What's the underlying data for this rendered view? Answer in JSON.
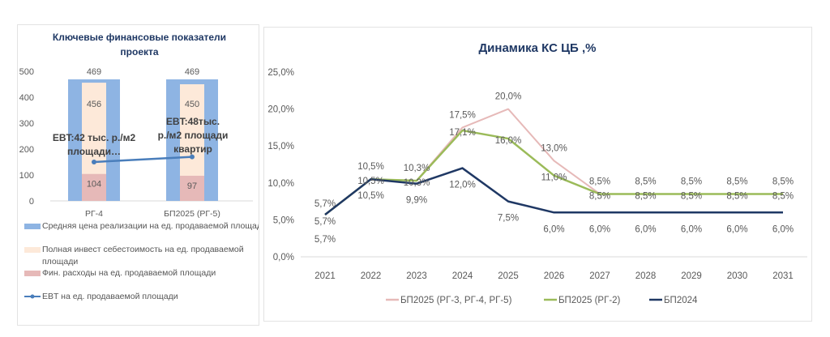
{
  "chart_data": [
    {
      "type": "bar",
      "title": "Ключевые финансовые показатели проекта",
      "categories": [
        "РГ-4",
        "БП2025 (РГ-5)"
      ],
      "ylim": [
        0,
        500
      ],
      "yticks": [
        "0",
        "100",
        "200",
        "300",
        "400",
        "500"
      ],
      "grid": false,
      "legend_position": "bottom",
      "series": [
        {
          "name": "Средняя цена реализации на ед. продаваемой площади",
          "kind": "bar",
          "values": [
            469,
            469
          ],
          "labels": [
            "469",
            "469"
          ],
          "color": "#8eb4e3"
        },
        {
          "name": "Полная инвест себестоимость  на ед. продаваемой площади",
          "kind": "bar",
          "values": [
            456,
            450
          ],
          "labels": [
            "456",
            "450"
          ],
          "color": "#fde9d9"
        },
        {
          "name": "Фин. расходы на ед. продаваемой площади",
          "kind": "bar",
          "values": [
            104,
            97
          ],
          "labels": [
            "104",
            "97"
          ],
          "color": "#e6b9b8"
        },
        {
          "name": "EBT  на ед. продаваемой площади",
          "kind": "line",
          "values": [
            150,
            170
          ],
          "color": "#4a7ebb"
        }
      ],
      "annotations": [
        "EBT:42 тыс. р./м2 площади…",
        "EBT:48тыс. р./м2 площади квартир"
      ]
    },
    {
      "type": "line",
      "title": "Динамика КС ЦБ ,%",
      "categories": [
        "2021",
        "2022",
        "2023",
        "2024",
        "2025",
        "2026",
        "2027",
        "2028",
        "2029",
        "2030",
        "2031"
      ],
      "ylim": [
        0,
        25
      ],
      "yticks": [
        "0,0%",
        "5,0%",
        "10,0%",
        "15,0%",
        "20,0%",
        "25,0%"
      ],
      "grid": false,
      "legend_position": "bottom",
      "series": [
        {
          "name": "БП2025 (РГ-3, РГ-4, РГ-5)",
          "color": "#e6b9b8",
          "values": [
            5.7,
            10.5,
            10.3,
            17.5,
            20.0,
            13.0,
            8.5,
            8.5,
            8.5,
            8.5,
            8.5
          ],
          "labels": [
            "5,7%",
            "10,5%",
            "10,3%",
            "17,5%",
            "20,0%",
            "13,0%",
            "8,5%",
            "8,5%",
            "8,5%",
            "8,5%",
            "8,5%"
          ]
        },
        {
          "name": "БП2025 (РГ-2)",
          "color": "#9bbb59",
          "values": [
            5.7,
            10.5,
            10.3,
            17.1,
            16.0,
            11.0,
            8.5,
            8.5,
            8.5,
            8.5,
            8.5
          ],
          "labels": [
            "5,7%",
            "10,5%",
            "10,3%",
            "17,1%",
            "16,0%",
            "11,0%",
            "8,5%",
            "8,5%",
            "8,5%",
            "8,5%",
            "8,5%"
          ]
        },
        {
          "name": "БП2024",
          "color": "#1f3864",
          "values": [
            5.7,
            10.5,
            9.9,
            12.0,
            7.5,
            6.0,
            6.0,
            6.0,
            6.0,
            6.0,
            6.0
          ],
          "labels": [
            "5,7%",
            "10,5%",
            "9,9%",
            "12,0%",
            "7,5%",
            "6,0%",
            "6,0%",
            "6,0%",
            "6,0%",
            "6,0%",
            "6,0%"
          ]
        }
      ]
    }
  ]
}
